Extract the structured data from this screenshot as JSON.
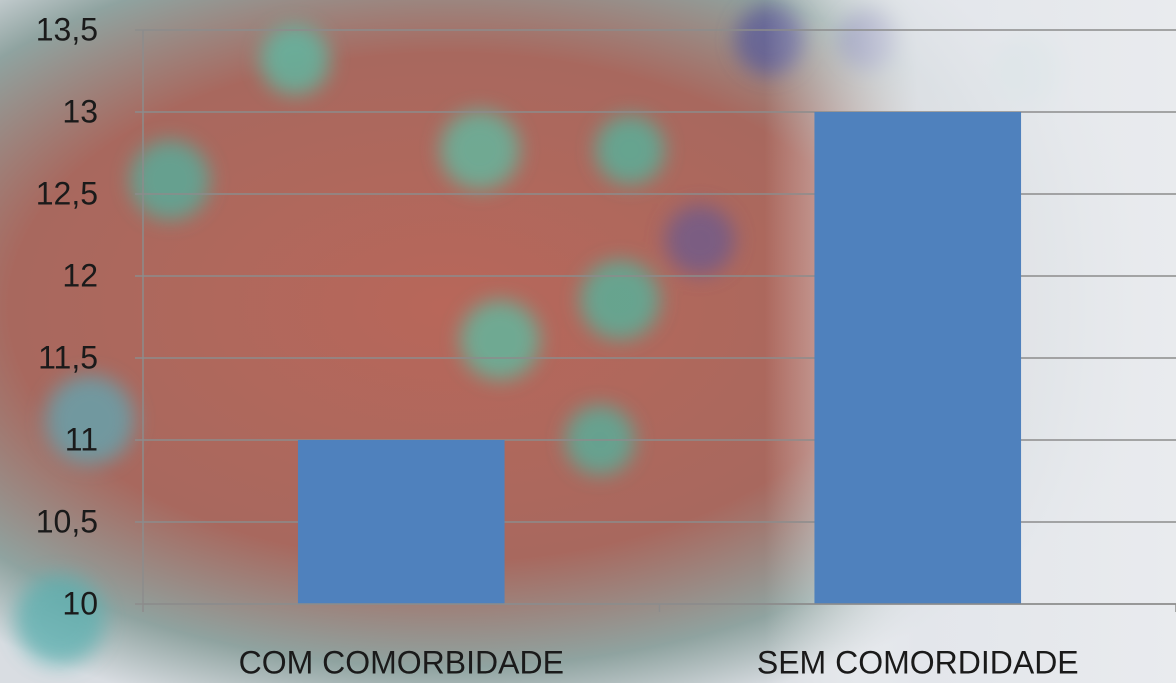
{
  "chart_data": {
    "type": "bar",
    "categories": [
      "COM COMORBIDADE",
      "SEM COMORDIDADE"
    ],
    "values": [
      11,
      13
    ],
    "color": "#4f81bd",
    "ylim": [
      10,
      13.5
    ],
    "yticks": [
      10,
      {
        "value": 10.5,
        "label": "10,5"
      },
      11,
      {
        "value": 11.5,
        "label": "11,5"
      },
      12,
      {
        "value": 12.5,
        "label": "12,5"
      },
      13,
      {
        "value": 13.5,
        "label": "13,5"
      }
    ],
    "grid": true
  }
}
